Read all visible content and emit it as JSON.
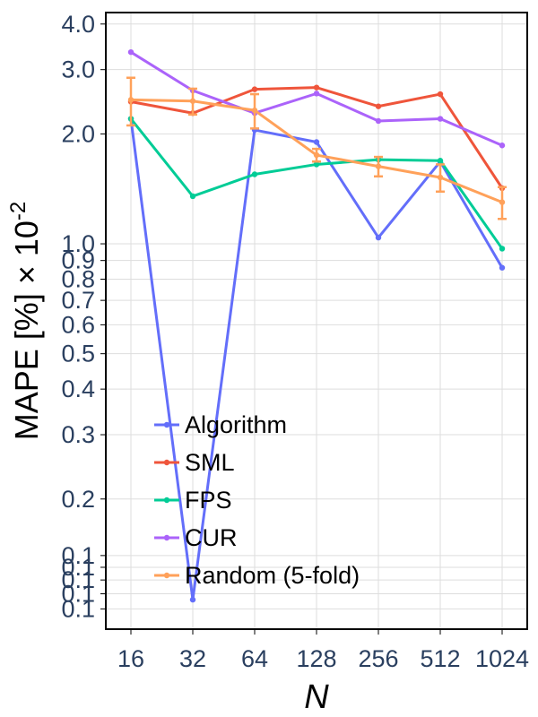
{
  "chart_data": {
    "type": "line",
    "xlabel": "N",
    "ylabel_main": "MAPE [%] × 10",
    "ylabel_exp": "-2",
    "yscale": "log",
    "ylim": [
      0.088,
      4.3
    ],
    "grid": true,
    "legend_position": "bottom-left",
    "x": [
      16,
      32,
      64,
      128,
      256,
      512,
      1024
    ],
    "x_tick_labels": [
      "16",
      "32",
      "64",
      "128",
      "256",
      "512",
      "1024"
    ],
    "y_ticks": [
      {
        "value": 0.1,
        "label": "0.1"
      },
      {
        "value": 0.2,
        "label": "0.2"
      },
      {
        "value": 0.3,
        "label": "0.3"
      },
      {
        "value": 0.4,
        "label": "0.4"
      },
      {
        "value": 0.5,
        "label": "0.5"
      },
      {
        "value": 0.6,
        "label": "0.6"
      },
      {
        "value": 0.7,
        "label": "0.7"
      },
      {
        "value": 0.8,
        "label": "0.8"
      },
      {
        "value": 0.9,
        "label": "0.9"
      },
      {
        "value": 1.0,
        "label": "1.0"
      },
      {
        "value": 2.0,
        "label": "2.0"
      },
      {
        "value": 3.0,
        "label": "3.0"
      },
      {
        "value": 4.0,
        "label": "4.0"
      }
    ],
    "minor_y_ticks": [
      {
        "value": 0.11,
        "label": "0.1"
      },
      {
        "value": 0.12,
        "label": "0.1"
      },
      {
        "value": 0.13,
        "label": "0.1"
      },
      {
        "value": 0.14,
        "label": "0.1"
      }
    ],
    "series": [
      {
        "name": "Algorithm",
        "color": "#636efa",
        "values": [
          2.2,
          0.106,
          2.05,
          1.9,
          1.04,
          1.68,
          0.86
        ]
      },
      {
        "name": "SML",
        "color": "#ef553b",
        "values": [
          2.45,
          2.28,
          2.65,
          2.68,
          2.38,
          2.57,
          1.42
        ]
      },
      {
        "name": "FPS",
        "color": "#00cc96",
        "values": [
          2.2,
          1.35,
          1.55,
          1.65,
          1.7,
          1.69,
          0.97
        ]
      },
      {
        "name": "CUR",
        "color": "#ab63fa",
        "values": [
          3.35,
          2.63,
          2.28,
          2.58,
          2.17,
          2.2,
          1.86
        ]
      },
      {
        "name": "Random (5-fold)",
        "color": "#ffa15a",
        "values": [
          2.48,
          2.46,
          2.32,
          1.75,
          1.63,
          1.52,
          1.3
        ],
        "error": [
          0.37,
          0.2,
          0.25,
          0.07,
          0.1,
          0.13,
          0.13
        ]
      }
    ]
  }
}
